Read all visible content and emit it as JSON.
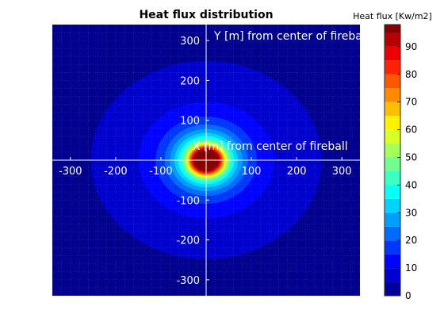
{
  "chart_data": {
    "type": "heatmap",
    "title": "Heat flux distribution",
    "colorbar_label": "Heat flux [Kw/m2]",
    "x_axis_label": "X [m] from center of fireball",
    "y_axis_label": "Y [m] from center of fireball",
    "xlim": [
      -340,
      340
    ],
    "ylim": [
      -340,
      340
    ],
    "x_ticks": [
      -300,
      -200,
      -100,
      100,
      200,
      300
    ],
    "x_tick_labels": [
      "-300",
      "-200",
      "-100",
      "100",
      "200",
      "300"
    ],
    "y_ticks": [
      -300,
      -200,
      -100,
      100,
      200,
      300
    ],
    "y_tick_labels": [
      "-300",
      "-200",
      "-100",
      "100",
      "200",
      "300"
    ],
    "colorbar_range": [
      0,
      98
    ],
    "colorbar_ticks": [
      0,
      10,
      20,
      30,
      40,
      50,
      60,
      70,
      80,
      90
    ],
    "colorbar_tick_labels": [
      "0",
      "10",
      "20",
      "30",
      "40",
      "50",
      "60",
      "70",
      "80",
      "90"
    ],
    "contour_levels": [
      0,
      5,
      10,
      15,
      20,
      25,
      30,
      35,
      40,
      45,
      50,
      55,
      60,
      65,
      70,
      75,
      80,
      85,
      90,
      95
    ],
    "colormap": "jet",
    "grid": true,
    "center": [
      0,
      0
    ],
    "isoline_radii": [
      {
        "level": 5,
        "radius": 255
      },
      {
        "level": 10,
        "radius": 150
      },
      {
        "level": 15,
        "radius": 112
      },
      {
        "level": 20,
        "radius": 92
      },
      {
        "level": 25,
        "radius": 80
      },
      {
        "level": 30,
        "radius": 70
      },
      {
        "level": 35,
        "radius": 62
      },
      {
        "level": 40,
        "radius": 56
      },
      {
        "level": 45,
        "radius": 52
      },
      {
        "level": 50,
        "radius": 48
      },
      {
        "level": 55,
        "radius": 45
      },
      {
        "level": 60,
        "radius": 42
      },
      {
        "level": 65,
        "radius": 40
      },
      {
        "level": 70,
        "radius": 38
      },
      {
        "level": 75,
        "radius": 36
      },
      {
        "level": 80,
        "radius": 34
      },
      {
        "level": 85,
        "radius": 32
      },
      {
        "level": 90,
        "radius": 30
      },
      {
        "level": 95,
        "radius": 28
      }
    ],
    "ellipse_aspect": 0.86
  }
}
